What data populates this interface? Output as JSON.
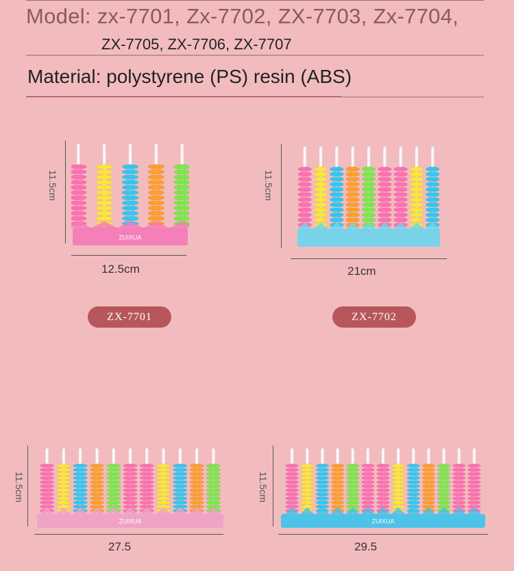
{
  "header": {
    "model_line1": "Model: zx-7701, Zx-7702, ZX-7703, Zx-7704,",
    "model_line2": "ZX-7705, ZX-7706, ZX-7707",
    "material": "Material: polystyrene (PS) resin (ABS)"
  },
  "products": [
    {
      "model": "ZX-7701",
      "width_label": "12.5cm",
      "height_label": "11.5cm",
      "base_color": "#f57ab8",
      "rods": 5,
      "brand": "ZUIXUA"
    },
    {
      "model": "ZX-7702",
      "width_label": "21cm",
      "height_label": "11.5cm",
      "base_color": "#6fd5ec",
      "rods": 9
    },
    {
      "width_label": "27.5",
      "height_label": "11.5cm",
      "base_color": "#f0a0c8",
      "rods": 11,
      "brand": "ZUIXUA"
    },
    {
      "width_label": "29.5",
      "height_label": "11.5cm",
      "base_color": "#3ec3ea",
      "rods": 13,
      "brand": "ZUIXUA"
    }
  ],
  "bead_colors": [
    "#ff6fb1",
    "#ffe53a",
    "#35c6ef",
    "#ff9d2e",
    "#7be84a",
    "#ff6fb1"
  ]
}
